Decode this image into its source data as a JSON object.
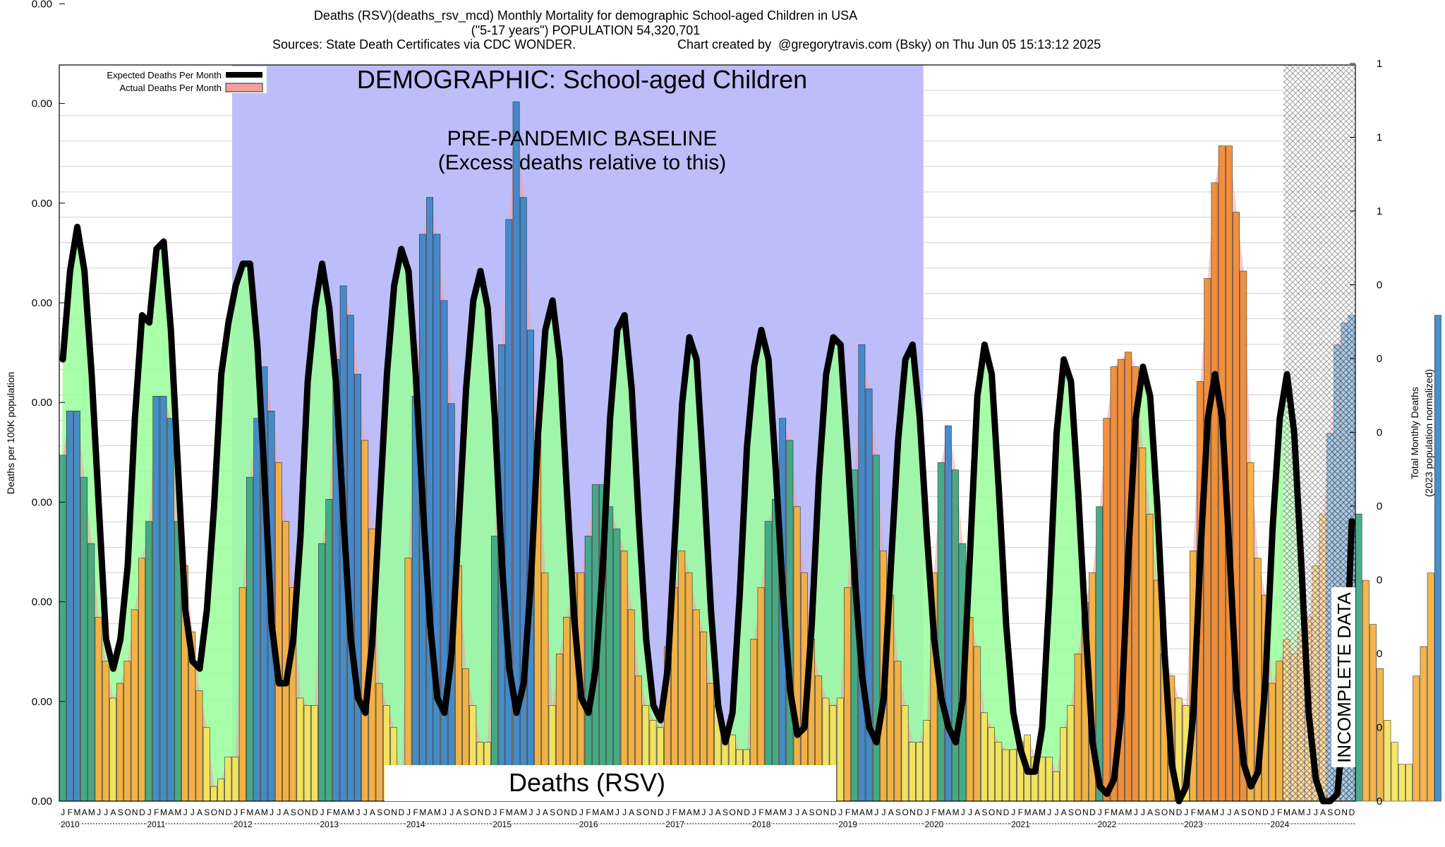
{
  "header": {
    "title_line1": "Deaths (RSV)(deaths_rsv_mcd) Monthly Mortality for demographic School-aged Children in USA",
    "title_line2": "(\"5-17 years\") POPULATION 54,320,701",
    "title_line3_left": "Sources: State Death Certificates via CDC WONDER.",
    "title_line3_right": "Chart created by  @gregorytravis.com (Bsky) on Thu Jun 05 15:13:12 2025"
  },
  "annotations": {
    "demographic": "DEMOGRAPHIC: School-aged Children",
    "baseline_line1": "PRE-PANDEMIC BASELINE",
    "baseline_line2": "(Excess deaths relative to this)",
    "cause_label": "Deaths (RSV)",
    "incomplete": "INCOMPLETE DATA"
  },
  "legend": {
    "expected": "Expected Deaths Per Month",
    "actual": "Actual Deaths Per Month"
  },
  "colors": {
    "baseline_band": "#bdbdfa",
    "expected_line": "#000000",
    "expected_fill": "#9aff9a",
    "actual_fill": "#f4a0a0",
    "bar_low": "#f5e65c",
    "bar_mid": "#f5b03d",
    "bar_high": "#3a86c8",
    "bar_green": "#3aa882",
    "bar_orange": "#f28a30",
    "hatch": "#cccccc"
  },
  "chart_data": {
    "type": "bar",
    "ylabel_left": "Deaths per 100K population",
    "ylabel_right_line1": "Total Monthly Deaths",
    "ylabel_right_line2": "(2023 population normalized)",
    "left_ticks": [
      "0.00",
      "0.00",
      "0.00",
      "0.00",
      "0.00",
      "0.00",
      "0.00",
      "0.00",
      "0.00"
    ],
    "right_ticks": [
      "0",
      "0",
      "0",
      "0",
      "0",
      "0",
      "0",
      "0",
      "1",
      "1",
      "1",
      "1"
    ],
    "month_letters": [
      "J",
      "F",
      "M",
      "A",
      "M",
      "J",
      "J",
      "A",
      "S",
      "O",
      "N",
      "D"
    ],
    "years": [
      "2010",
      "2011",
      "2012",
      "2013",
      "2014",
      "2015",
      "2016",
      "2017",
      "2018",
      "2019",
      "2020",
      "2021",
      "2022",
      "2023",
      "2024"
    ],
    "baseline_period": [
      "2012-01",
      "2019-12"
    ],
    "incomplete_from": "2024-03",
    "ylim": [
      0,
      1
    ],
    "actual": [
      0.47,
      0.53,
      0.53,
      0.44,
      0.35,
      0.25,
      0.19,
      0.14,
      0.16,
      0.19,
      0.26,
      0.33,
      0.38,
      0.55,
      0.55,
      0.52,
      0.38,
      0.32,
      0.23,
      0.15,
      0.1,
      0.02,
      0.03,
      0.06,
      0.06,
      0.29,
      0.44,
      0.52,
      0.59,
      0.53,
      0.46,
      0.38,
      0.29,
      0.14,
      0.13,
      0.13,
      0.35,
      0.41,
      0.6,
      0.7,
      0.66,
      0.58,
      0.49,
      0.37,
      0.16,
      0.13,
      0.1,
      0.02,
      0.33,
      0.55,
      0.77,
      0.82,
      0.77,
      0.68,
      0.54,
      0.32,
      0.18,
      0.13,
      0.08,
      0.08,
      0.36,
      0.62,
      0.79,
      0.95,
      0.82,
      0.64,
      0.49,
      0.31,
      0.13,
      0.2,
      0.25,
      0.31,
      0.31,
      0.36,
      0.43,
      0.43,
      0.4,
      0.37,
      0.34,
      0.26,
      0.17,
      0.13,
      0.11,
      0.1,
      0.21,
      0.29,
      0.34,
      0.31,
      0.26,
      0.23,
      0.16,
      0.13,
      0.1,
      0.09,
      0.07,
      0.07,
      0.22,
      0.29,
      0.38,
      0.41,
      0.52,
      0.49,
      0.4,
      0.31,
      0.22,
      0.17,
      0.14,
      0.13,
      0.14,
      0.29,
      0.45,
      0.62,
      0.56,
      0.47,
      0.34,
      0.28,
      0.19,
      0.13,
      0.08,
      0.08,
      0.11,
      0.31,
      0.46,
      0.51,
      0.45,
      0.35,
      0.25,
      0.21,
      0.12,
      0.1,
      0.08,
      0.07,
      0.07,
      0.08,
      0.09,
      0.06,
      0.06,
      0.06,
      0.04,
      0.1,
      0.13,
      0.2,
      0.27,
      0.31,
      0.4,
      0.52,
      0.59,
      0.6,
      0.61,
      0.59,
      0.48,
      0.39,
      0.3,
      0.2,
      0.17,
      0.14,
      0.13,
      0.34,
      0.57,
      0.71,
      0.84,
      0.89,
      0.89,
      0.8,
      0.72,
      0.46,
      0.33,
      0.28,
      0.16,
      0.19,
      0.22,
      0.2,
      0.23,
      0.25,
      0.32,
      0.39,
      0.5,
      0.62,
      0.65,
      0.66,
      0.39,
      0.3,
      0.24,
      0.18,
      0.11,
      0.08,
      0.05,
      0.05,
      0.17,
      0.21,
      0.31,
      0.66
    ],
    "expected": [
      0.6,
      0.72,
      0.78,
      0.72,
      0.58,
      0.4,
      0.22,
      0.18,
      0.22,
      0.32,
      0.52,
      0.66,
      0.65,
      0.75,
      0.76,
      0.64,
      0.45,
      0.26,
      0.19,
      0.18,
      0.26,
      0.4,
      0.58,
      0.65,
      0.7,
      0.73,
      0.73,
      0.62,
      0.44,
      0.24,
      0.16,
      0.16,
      0.22,
      0.36,
      0.57,
      0.67,
      0.73,
      0.67,
      0.56,
      0.38,
      0.22,
      0.14,
      0.12,
      0.22,
      0.4,
      0.58,
      0.7,
      0.75,
      0.72,
      0.58,
      0.4,
      0.24,
      0.14,
      0.12,
      0.2,
      0.38,
      0.56,
      0.68,
      0.72,
      0.67,
      0.52,
      0.32,
      0.18,
      0.12,
      0.16,
      0.3,
      0.5,
      0.64,
      0.68,
      0.6,
      0.42,
      0.25,
      0.14,
      0.12,
      0.18,
      0.32,
      0.52,
      0.64,
      0.66,
      0.56,
      0.38,
      0.22,
      0.13,
      0.11,
      0.18,
      0.36,
      0.54,
      0.63,
      0.6,
      0.44,
      0.26,
      0.13,
      0.08,
      0.12,
      0.28,
      0.48,
      0.59,
      0.64,
      0.6,
      0.45,
      0.28,
      0.15,
      0.09,
      0.1,
      0.24,
      0.44,
      0.58,
      0.63,
      0.62,
      0.47,
      0.3,
      0.17,
      0.1,
      0.08,
      0.14,
      0.32,
      0.49,
      0.6,
      0.62,
      0.52,
      0.36,
      0.22,
      0.14,
      0.1,
      0.08,
      0.14,
      0.34,
      0.55,
      0.62,
      0.58,
      0.42,
      0.24,
      0.12,
      0.07,
      0.04,
      0.04,
      0.1,
      0.28,
      0.5,
      0.6,
      0.57,
      0.42,
      0.24,
      0.08,
      0.02,
      0.01,
      0.03,
      0.12,
      0.34,
      0.52,
      0.59,
      0.55,
      0.4,
      0.2,
      0.05,
      0.0,
      0.02,
      0.12,
      0.34,
      0.52,
      0.58,
      0.52,
      0.34,
      0.15,
      0.05,
      0.02,
      0.04,
      0.16,
      0.37,
      0.52,
      0.58,
      0.5,
      0.32,
      0.12,
      0.03,
      0.0,
      0.0,
      0.01,
      0.12,
      0.38
    ]
  }
}
